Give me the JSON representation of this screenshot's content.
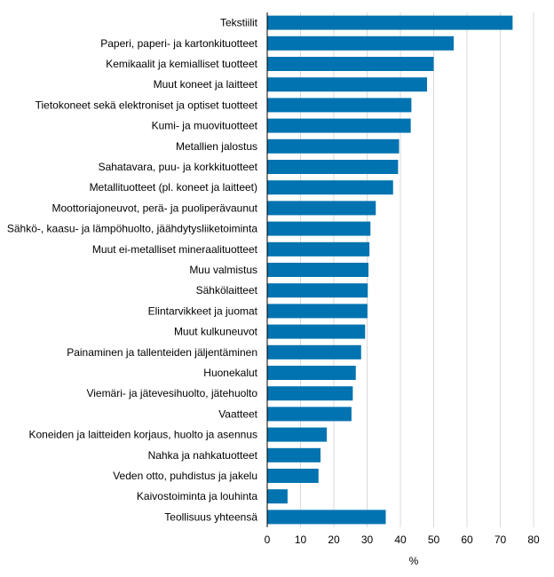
{
  "chart_data": {
    "type": "bar",
    "orientation": "horizontal",
    "categories": [
      "Tekstiilit",
      "Paperi, paperi- ja kartonkituotteet",
      "Kemikaalit ja kemialliset tuotteet",
      "Muut koneet ja laitteet",
      "Tietokoneet sekä elektroniset ja optiset tuotteet",
      "Kumi- ja muovituotteet",
      "Metallien jalostus",
      "Sahatavara, puu- ja korkkituotteet",
      "Metallituotteet (pl. koneet ja laitteet)",
      "Moottoriajoneuvot, perä- ja puoliperävaunut",
      "Sähkö-, kaasu- ja lämpöhuolto, jäähdytysliiketoiminta",
      "Muut ei-metalliset mineraalituotteet",
      "Muu valmistus",
      "Sähkölaitteet",
      "Elintarvikkeet ja juomat",
      "Muut kulkuneuvot",
      "Painaminen ja tallenteiden jäljentäminen",
      "Huonekalut",
      "Viemäri- ja jätevesihuolto, jätehuolto",
      "Vaatteet",
      "Koneiden ja laitteiden korjaus, huolto ja asennus",
      "Nahka ja nahkatuotteet",
      "Veden otto, puhdistus ja jakelu",
      "Kaivostoiminta ja louhinta",
      "Teollisuus yhteensä"
    ],
    "values": [
      73.7,
      56.0,
      50.0,
      48.0,
      43.3,
      43.1,
      39.6,
      39.3,
      37.8,
      32.6,
      31.0,
      30.7,
      30.4,
      30.2,
      30.1,
      29.4,
      28.2,
      26.6,
      25.7,
      25.3,
      17.9,
      16.0,
      15.4,
      6.1,
      35.6
    ],
    "xlim": [
      0,
      80
    ],
    "xticks": [
      "0",
      "10",
      "20",
      "30",
      "40",
      "50",
      "60",
      "70",
      "80"
    ],
    "xlabel": "%",
    "grid": "vertical",
    "colors": {
      "bar": "#0073b0",
      "grid": "#d9d9d9",
      "axis": "#000000"
    }
  }
}
